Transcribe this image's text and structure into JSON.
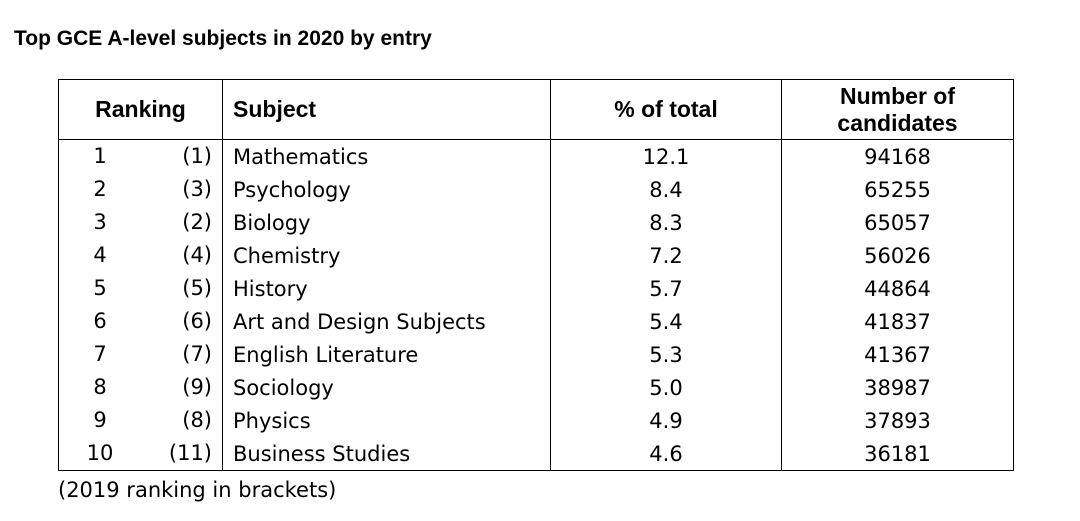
{
  "title": "Top GCE A-level subjects in 2020 by entry",
  "table": {
    "headers": {
      "ranking": "Ranking",
      "subject": "Subject",
      "pct": "% of total",
      "num_line1": "Number of",
      "num_line2": "candidates"
    },
    "rows": [
      {
        "rank": "1",
        "prev": "(1)",
        "subject": "Mathematics",
        "pct": "12.1",
        "num": "94168"
      },
      {
        "rank": "2",
        "prev": "(3)",
        "subject": "Psychology",
        "pct": "8.4",
        "num": "65255"
      },
      {
        "rank": "3",
        "prev": "(2)",
        "subject": "Biology",
        "pct": "8.3",
        "num": "65057"
      },
      {
        "rank": "4",
        "prev": "(4)",
        "subject": "Chemistry",
        "pct": "7.2",
        "num": "56026"
      },
      {
        "rank": "5",
        "prev": "(5)",
        "subject": "History",
        "pct": "5.7",
        "num": "44864"
      },
      {
        "rank": "6",
        "prev": "(6)",
        "subject": "Art and Design Subjects",
        "pct": "5.4",
        "num": "41837"
      },
      {
        "rank": "7",
        "prev": "(7)",
        "subject": "English Literature",
        "pct": "5.3",
        "num": "41367"
      },
      {
        "rank": "8",
        "prev": "(9)",
        "subject": "Sociology",
        "pct": "5.0",
        "num": "38987"
      },
      {
        "rank": "9",
        "prev": "(8)",
        "subject": "Physics",
        "pct": "4.9",
        "num": "37893"
      },
      {
        "rank": "10",
        "prev": "(11)",
        "subject": "Business Studies",
        "pct": "4.6",
        "num": "36181"
      }
    ]
  },
  "footnote": "(2019 ranking in brackets)"
}
